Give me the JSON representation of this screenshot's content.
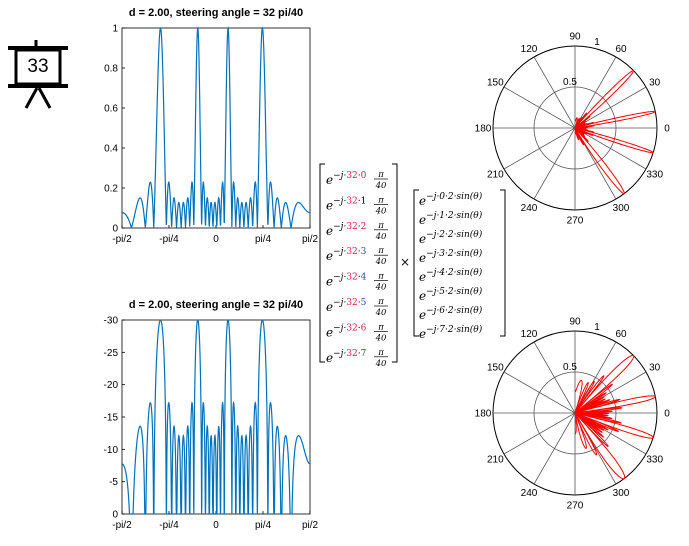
{
  "slide_badge": "33",
  "chart_data": [
    {
      "type": "line",
      "title": "d = 2.00, steering angle  = 32 pi/40",
      "x_ticks": [
        "-pi/2",
        "-pi/4",
        "0",
        "pi/4",
        "pi/2"
      ],
      "y_ticks": [
        "0",
        "0.2",
        "0.4",
        "0.6",
        "0.8",
        "1"
      ],
      "ylim": [
        0,
        1
      ],
      "scale": "linear",
      "series_color": "#0072BD",
      "array": {
        "elements": 8,
        "spacing_d": 2.0,
        "steer_rad": 2.5133
      }
    },
    {
      "type": "line",
      "title": "d = 2.00, steering angle  = 32 pi/40",
      "x_ticks": [
        "-pi/2",
        "-pi/4",
        "0",
        "pi/4",
        "pi/2"
      ],
      "y_ticks": [
        "0",
        "-5",
        "-10",
        "-15",
        "-20",
        "-25",
        "-30"
      ],
      "ylim": [
        -30,
        0
      ],
      "scale": "dB",
      "series_color": "#0072BD",
      "array": {
        "elements": 8,
        "spacing_d": 2.0,
        "steer_rad": 2.5133
      }
    }
  ],
  "polar": {
    "angle_labels": [
      "0",
      "30",
      "60",
      "90",
      "120",
      "150",
      "180",
      "210",
      "240",
      "270",
      "300",
      "330"
    ],
    "radial_labels": [
      "0.5",
      "1"
    ],
    "line_color": "#FF0000"
  },
  "equation": {
    "steering_vector": [
      "e^{-j·32·0·π/40}",
      "e^{-j·32·1·π/40}",
      "e^{-j·32·2·π/40}",
      "e^{-j·32·3·π/40}",
      "e^{-j·32·4·π/40}",
      "e^{-j·32·5·π/40}",
      "e^{-j·32·6·π/40}",
      "e^{-j·32·7·π/40}"
    ],
    "array_vector": [
      "e^{-j·0·2·sin(θ)}",
      "e^{-j·1·2·sin(θ)}",
      "e^{-j·2·2·sin(θ)}",
      "e^{-j·3·2·sin(θ)}",
      "e^{-j·4·2·sin(θ)}",
      "e^{-j·5·2·sin(θ)}",
      "e^{-j·6·2·sin(θ)}",
      "e^{-j·7·2·sin(θ)}"
    ],
    "operator": "×",
    "steer_num": "32",
    "pi": "π",
    "denom": "40",
    "base": "e",
    "minus_j": "−j·",
    "dot": "·",
    "sin_theta": "·2·sin(θ)",
    "indices": [
      "0",
      "1",
      "2",
      "3",
      "4",
      "5",
      "6",
      "7"
    ],
    "index_colors": [
      "#E6194B",
      "#000000",
      "#E6194B",
      "#1F4E9C",
      "#1F4E9C",
      "#1F4E9C",
      "#E6194B",
      "#1F4E9C"
    ],
    "steer_color": "#E6194B"
  }
}
